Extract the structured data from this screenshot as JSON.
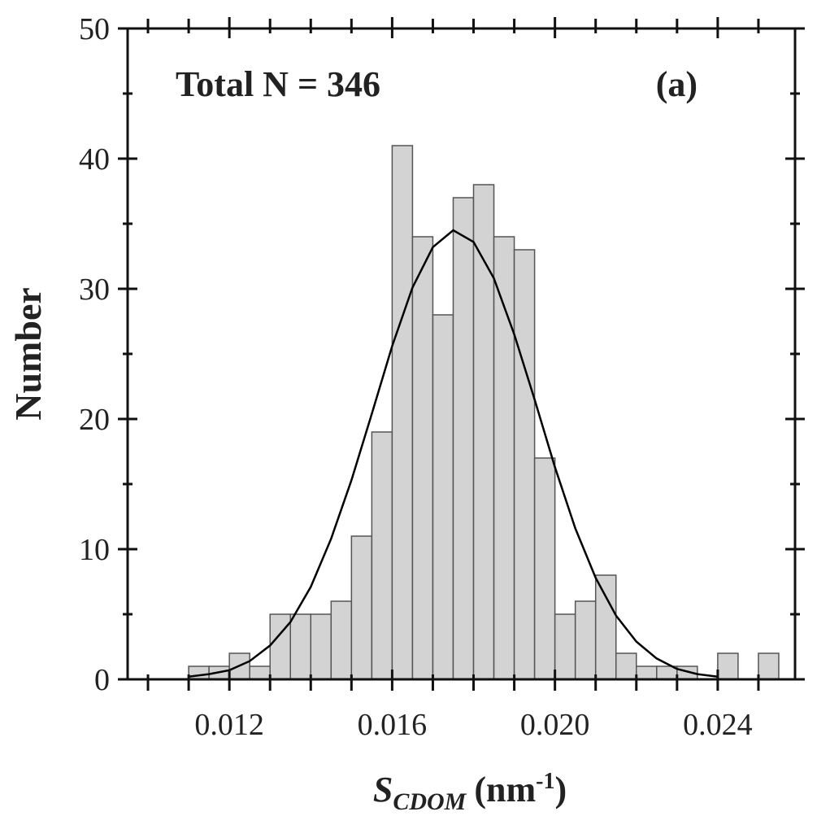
{
  "chart_data": {
    "type": "histogram",
    "annotation": "Total N = 346",
    "panel_label": "(a)",
    "ylabel": "Number",
    "xlabel": {
      "symbol": "S",
      "subscript": "CDOM",
      "unit": "(nm",
      "unit_superscript": "-1",
      "unit_close": ")"
    },
    "bins": [
      0.011,
      0.0115,
      0.012,
      0.0125,
      0.013,
      0.0135,
      0.014,
      0.0145,
      0.015,
      0.0155,
      0.016,
      0.0165,
      0.017,
      0.0175,
      0.018,
      0.0185,
      0.019,
      0.0195,
      0.02,
      0.0205,
      0.021,
      0.0215,
      0.022,
      0.0225,
      0.023,
      0.0235,
      0.024,
      0.0245,
      0.025,
      0.0255
    ],
    "values": [
      1,
      1,
      2,
      1,
      5,
      5,
      5,
      6,
      11,
      19,
      41,
      34,
      28,
      37,
      38,
      34,
      33,
      17,
      5,
      6,
      8,
      2,
      1,
      1,
      1,
      0,
      2,
      0,
      2
    ],
    "color": "#d3d3d3",
    "fit": {
      "color": "#000000",
      "x": [
        0.011,
        0.0115,
        0.012,
        0.0125,
        0.013,
        0.0135,
        0.014,
        0.0145,
        0.015,
        0.0155,
        0.016,
        0.0165,
        0.017,
        0.0175,
        0.018,
        0.0185,
        0.019,
        0.0195,
        0.02,
        0.0205,
        0.021,
        0.0215,
        0.022,
        0.0225,
        0.023,
        0.0235,
        0.024
      ],
      "values": [
        0.2,
        0.4,
        0.7,
        1.4,
        2.6,
        4.4,
        7.1,
        10.8,
        15.3,
        20.4,
        25.6,
        30.1,
        33.2,
        34.5,
        33.6,
        30.8,
        26.5,
        21.5,
        16.3,
        11.6,
        7.8,
        4.9,
        2.9,
        1.6,
        0.8,
        0.4,
        0.2
      ]
    },
    "xlim": [
      0.0095,
      0.0259
    ],
    "ylim": [
      0,
      50
    ],
    "xticks": [
      0.012,
      0.016,
      {
        "value": 0.02,
        "label": "0.020"
      },
      0.024
    ],
    "xticks_minor": [
      0.01,
      0.011,
      0.013,
      0.014,
      0.015,
      0.017,
      0.018,
      0.019,
      0.021,
      0.022,
      0.023,
      0.025
    ],
    "yticks": [
      0,
      10,
      20,
      30,
      40,
      50
    ],
    "yticks_minor": [
      5,
      15,
      25,
      35,
      45
    ],
    "grid": false
  }
}
